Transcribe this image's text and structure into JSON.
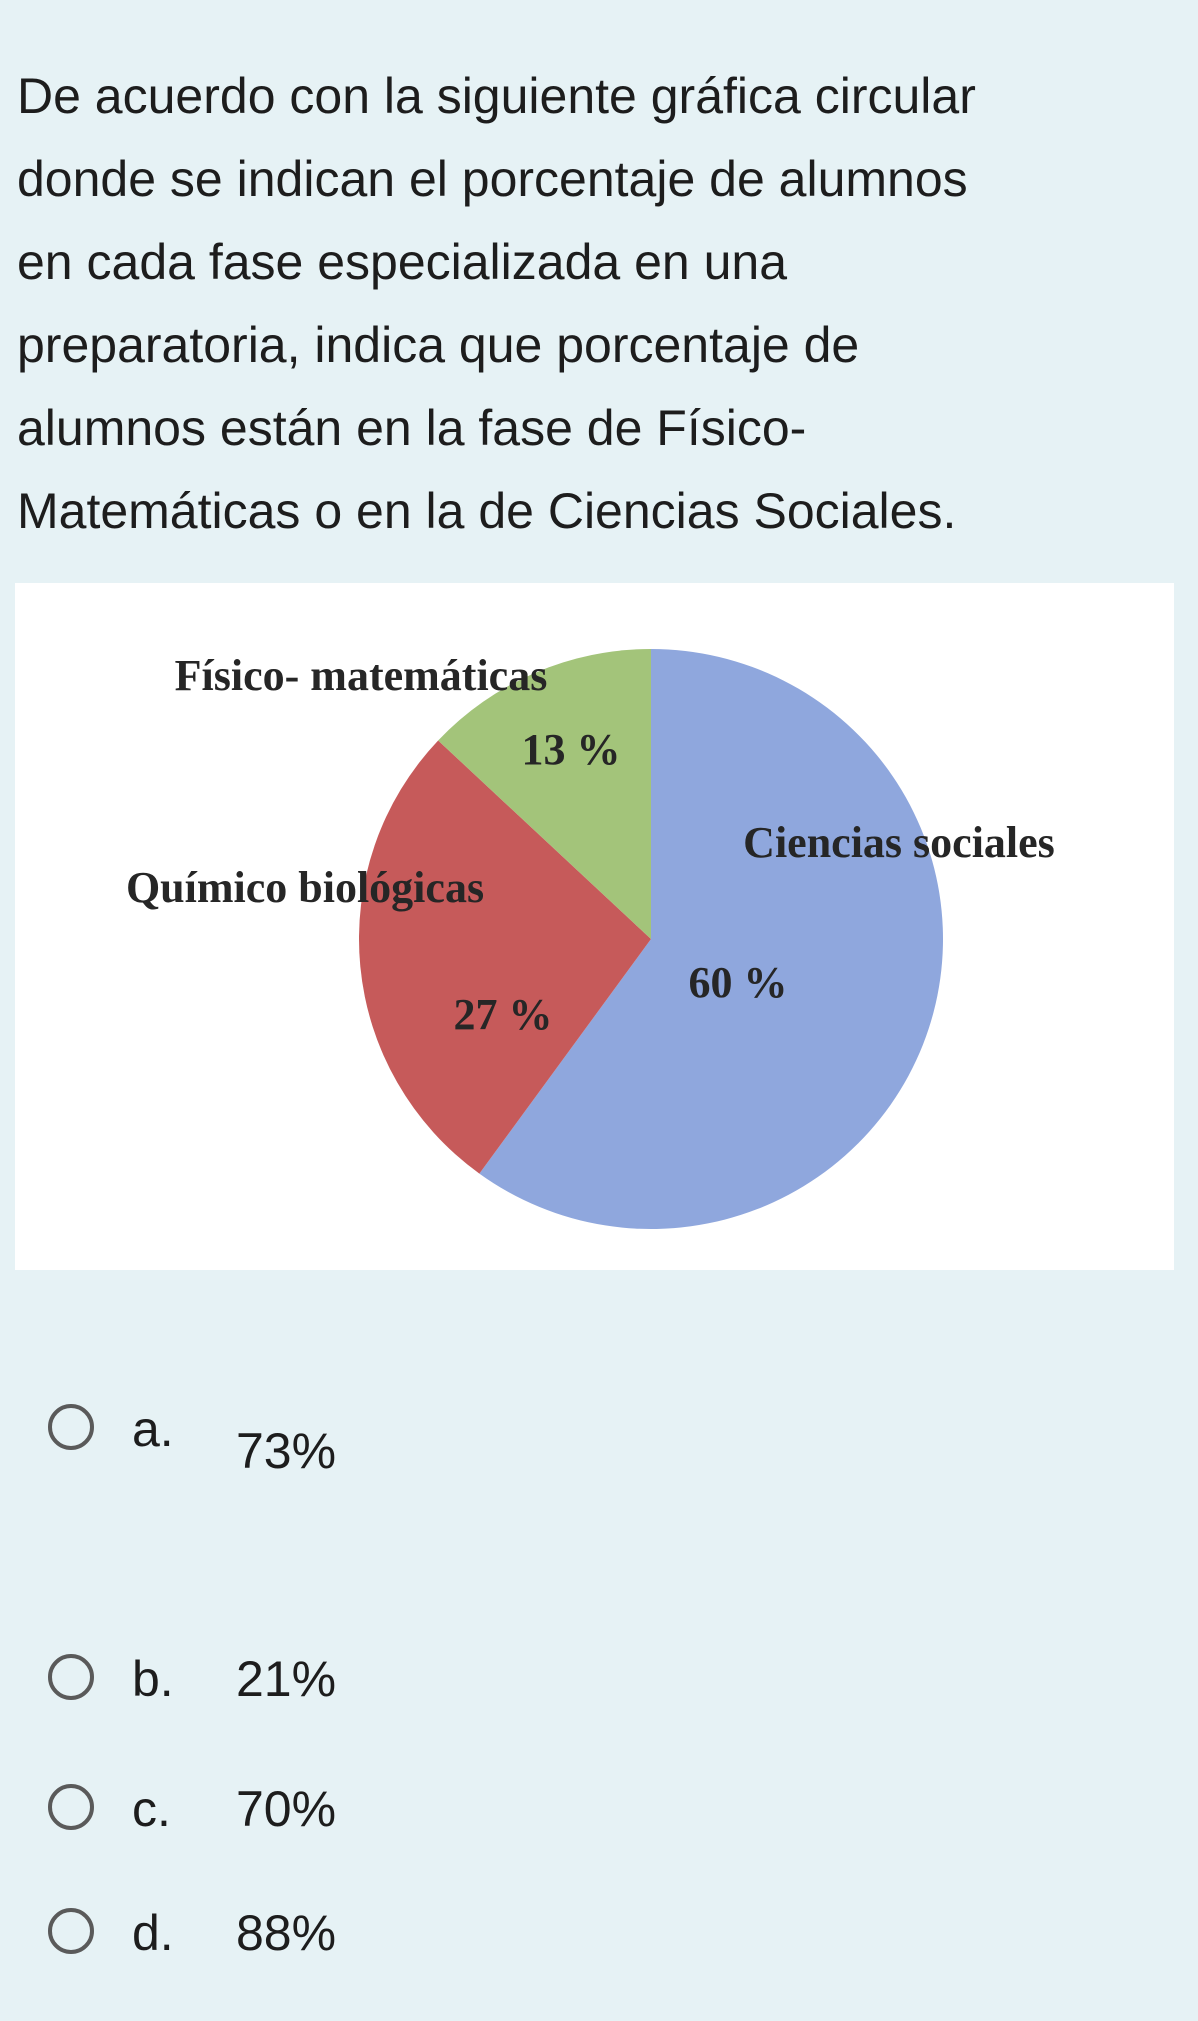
{
  "question_lines": [
    "De acuerdo con la siguiente gráfica circular",
    "donde se indican el porcentaje de alumnos",
    "en cada fase especializada en una",
    "preparatoria, indica que porcentaje de",
    "alumnos están en la fase de Físico-",
    "Matemáticas o en la de Ciencias Sociales."
  ],
  "chart_data": {
    "type": "pie",
    "categories": [
      "Ciencias sociales",
      "Químico biológicas",
      "Físico- matemáticas"
    ],
    "values": [
      60,
      27,
      13
    ],
    "value_labels": [
      "60 %",
      "27 %",
      "13 %"
    ],
    "colors": [
      "#8fa7dd",
      "#c65a5a",
      "#a3c47a"
    ]
  },
  "options": [
    {
      "letter": "a.",
      "text": "73%"
    },
    {
      "letter": "b.",
      "text": "21%"
    },
    {
      "letter": "c.",
      "text": "70%"
    },
    {
      "letter": "d.",
      "text": "88%"
    }
  ]
}
